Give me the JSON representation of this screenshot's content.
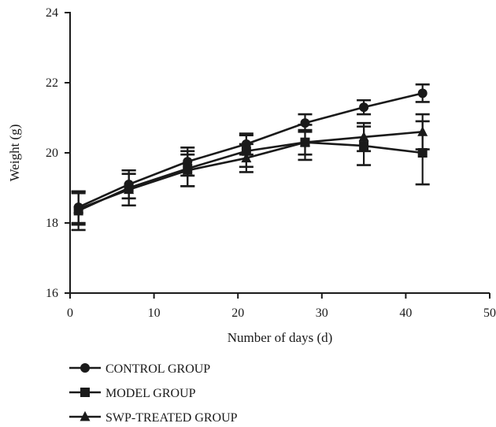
{
  "chart_data": {
    "type": "line",
    "xlabel": "Number of days (d)",
    "ylabel": "Weight (g)",
    "xlim": [
      0,
      50
    ],
    "ylim": [
      16,
      24
    ],
    "xticks": [
      0,
      10,
      20,
      30,
      40,
      50
    ],
    "yticks": [
      16,
      18,
      20,
      22,
      24
    ],
    "grid": false,
    "legend_position": "bottom-left",
    "series": [
      {
        "name": "CONTROL GROUP",
        "marker": "circle",
        "x": [
          1,
          7,
          14,
          21,
          28,
          35,
          42
        ],
        "y": [
          18.45,
          19.1,
          19.75,
          20.25,
          20.85,
          21.3,
          21.7
        ],
        "err": [
          0.45,
          0.4,
          0.4,
          0.3,
          0.25,
          0.2,
          0.25
        ]
      },
      {
        "name": "MODEL GROUP",
        "marker": "square",
        "x": [
          1,
          7,
          14,
          21,
          28,
          35,
          42
        ],
        "y": [
          18.35,
          19.0,
          19.55,
          20.05,
          20.3,
          20.2,
          20.0
        ],
        "err": [
          0.55,
          0.5,
          0.5,
          0.45,
          0.5,
          0.55,
          0.9
        ]
      },
      {
        "name": "SWP-TREATED GROUP",
        "marker": "triangle",
        "x": [
          1,
          7,
          14,
          21,
          28,
          35,
          42
        ],
        "y": [
          18.4,
          18.95,
          19.5,
          19.85,
          20.3,
          20.45,
          20.6
        ],
        "err": [
          0.45,
          0.45,
          0.45,
          0.4,
          0.35,
          0.4,
          0.5
        ]
      }
    ]
  }
}
